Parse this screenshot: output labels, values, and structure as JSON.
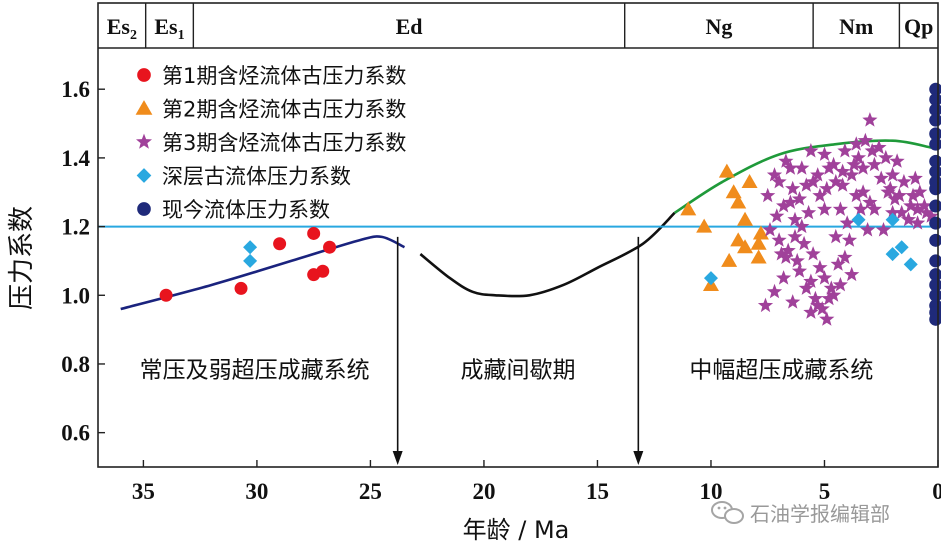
{
  "chart_data": {
    "type": "scatter",
    "xlabel": "年龄 / Ma",
    "ylabel": "压力系数",
    "xlim": [
      37,
      0
    ],
    "ylim": [
      0.5,
      1.72
    ],
    "x_ticks": [
      35,
      30,
      25,
      20,
      15,
      10,
      5,
      0
    ],
    "y_ticks": [
      0.6,
      0.8,
      1.0,
      1.2,
      1.4,
      1.6
    ],
    "grid": false,
    "legend_position": "top-left",
    "strata": [
      {
        "label": "Es",
        "sub": "2",
        "from": 37,
        "to": 34.9
      },
      {
        "label": "Es",
        "sub": "1",
        "from": 34.9,
        "to": 32.8
      },
      {
        "label": "Ed",
        "sub": "",
        "from": 32.8,
        "to": 13.8
      },
      {
        "label": "Ng",
        "sub": "",
        "from": 13.8,
        "to": 5.5
      },
      {
        "label": "Nm",
        "sub": "",
        "from": 5.5,
        "to": 1.7
      },
      {
        "label": "Qp",
        "sub": "",
        "from": 1.7,
        "to": 0
      }
    ],
    "reference_line": {
      "y": 1.2,
      "color": "#29a8e0"
    },
    "phase_labels": [
      {
        "text": "常压及弱超压成藏系统",
        "x": 30.1,
        "y": 0.76
      },
      {
        "text": "成藏间歇期",
        "x": 18.5,
        "y": 0.76
      },
      {
        "text": "中幅超压成藏系统",
        "x": 6.9,
        "y": 0.76
      }
    ],
    "arrows": [
      {
        "x": 23.8,
        "y_from": 1.17,
        "y_to": 0.5
      },
      {
        "x": 13.2,
        "y_from": 1.17,
        "y_to": 0.5
      }
    ],
    "curves": [
      {
        "color": "#1a237e",
        "points": [
          [
            36.0,
            0.96
          ],
          [
            32,
            1.03
          ],
          [
            28,
            1.11
          ],
          [
            25.5,
            1.16
          ],
          [
            24.5,
            1.17
          ],
          [
            23.5,
            1.14
          ]
        ]
      },
      {
        "color": "#111111",
        "points": [
          [
            22.8,
            1.12
          ],
          [
            21.5,
            1.05
          ],
          [
            20.5,
            1.01
          ],
          [
            19.5,
            1.0
          ],
          [
            18.0,
            1.0
          ],
          [
            16.5,
            1.03
          ],
          [
            15.0,
            1.08
          ],
          [
            13.0,
            1.15
          ],
          [
            11.6,
            1.24
          ]
        ]
      },
      {
        "color": "#1f9a3a",
        "points": [
          [
            11.6,
            1.24
          ],
          [
            9.5,
            1.33
          ],
          [
            7,
            1.41
          ],
          [
            4.5,
            1.44
          ],
          [
            2,
            1.45
          ],
          [
            0.3,
            1.43
          ]
        ]
      }
    ],
    "series": [
      {
        "name": "第1期含烃流体古压力系数",
        "marker": "circle",
        "color": "#e8141e",
        "points": [
          [
            34.0,
            1.0
          ],
          [
            30.7,
            1.02
          ],
          [
            29.0,
            1.15
          ],
          [
            27.5,
            1.06
          ],
          [
            27.5,
            1.18
          ],
          [
            27.1,
            1.07
          ],
          [
            26.8,
            1.14
          ]
        ]
      },
      {
        "name": "第2期含烃流体古压力系数",
        "marker": "triangle",
        "color": "#f08c1c",
        "points": [
          [
            11.0,
            1.25
          ],
          [
            10.3,
            1.2
          ],
          [
            10.0,
            1.03
          ],
          [
            9.3,
            1.36
          ],
          [
            9.0,
            1.3
          ],
          [
            8.8,
            1.16
          ],
          [
            8.5,
            1.14
          ],
          [
            8.8,
            1.27
          ],
          [
            8.3,
            1.33
          ],
          [
            8.5,
            1.22
          ],
          [
            9.2,
            1.1
          ],
          [
            7.9,
            1.15
          ],
          [
            7.9,
            1.11
          ],
          [
            7.8,
            1.18
          ]
        ]
      },
      {
        "name": "第3期含烃流体古压力系数",
        "marker": "star",
        "color": "#a0419a",
        "points": [
          [
            6.7,
            1.39
          ],
          [
            6.5,
            1.27
          ],
          [
            6.0,
            1.37
          ],
          [
            5.5,
            1.33
          ],
          [
            5.2,
            1.29
          ],
          [
            4.8,
            1.37
          ],
          [
            4.5,
            1.33
          ],
          [
            4.2,
            1.32
          ],
          [
            3.8,
            1.35
          ],
          [
            3.5,
            1.4
          ],
          [
            3.2,
            1.45
          ],
          [
            3.0,
            1.51
          ],
          [
            2.8,
            1.38
          ],
          [
            2.5,
            1.34
          ],
          [
            2.2,
            1.3
          ],
          [
            1.9,
            1.28
          ],
          [
            1.5,
            1.33
          ],
          [
            1.2,
            1.26
          ],
          [
            0.9,
            1.25
          ],
          [
            0.6,
            1.26
          ],
          [
            0.3,
            1.23
          ],
          [
            1.0,
            1.34
          ],
          [
            2.0,
            1.24
          ],
          [
            2.8,
            1.25
          ],
          [
            3.6,
            1.29
          ],
          [
            4.3,
            1.25
          ],
          [
            5.0,
            1.25
          ],
          [
            5.8,
            1.32
          ],
          [
            6.3,
            1.22
          ],
          [
            7.0,
            1.33
          ],
          [
            7.5,
            1.29
          ],
          [
            7.2,
            1.35
          ],
          [
            5.6,
            1.42
          ],
          [
            4.1,
            1.42
          ],
          [
            3.3,
            1.37
          ],
          [
            2.0,
            1.35
          ],
          [
            1.6,
            1.24
          ],
          [
            3.1,
            1.19
          ],
          [
            4.6,
            1.38
          ],
          [
            6.8,
            1.26
          ],
          [
            7.4,
            1.19
          ],
          [
            7.0,
            1.16
          ],
          [
            6.6,
            1.13
          ],
          [
            6.2,
            1.1
          ],
          [
            5.9,
            1.15
          ],
          [
            5.5,
            1.12
          ],
          [
            5.2,
            1.08
          ],
          [
            5.0,
            1.05
          ],
          [
            4.7,
            1.02
          ],
          [
            4.4,
            1.09
          ],
          [
            4.1,
            1.11
          ],
          [
            3.8,
            1.06
          ],
          [
            6.0,
            1.2
          ],
          [
            5.8,
            1.02
          ],
          [
            5.4,
            0.99
          ],
          [
            5.1,
            0.96
          ],
          [
            4.9,
            0.93
          ],
          [
            5.6,
            1.04
          ],
          [
            6.4,
            0.98
          ],
          [
            7.2,
            1.01
          ],
          [
            7.6,
            0.97
          ],
          [
            6.8,
            1.05
          ],
          [
            6.1,
            1.07
          ],
          [
            5.3,
            0.97
          ],
          [
            4.6,
            1.0
          ],
          [
            4.3,
            1.03
          ],
          [
            6.7,
            1.11
          ],
          [
            3.4,
            1.25
          ],
          [
            3.9,
            1.16
          ],
          [
            2.3,
            1.4
          ],
          [
            2.6,
            1.43
          ],
          [
            1.8,
            1.39
          ],
          [
            0.8,
            1.3
          ],
          [
            3.7,
            1.38
          ],
          [
            5.3,
            1.35
          ],
          [
            6.4,
            1.31
          ],
          [
            4.9,
            1.31
          ],
          [
            4.0,
            1.21
          ],
          [
            2.4,
            1.19
          ],
          [
            1.3,
            1.22
          ],
          [
            6.5,
            1.37
          ],
          [
            3.6,
            1.44
          ],
          [
            0.5,
            1.24
          ],
          [
            1.1,
            1.29
          ],
          [
            2.9,
            1.42
          ],
          [
            5.7,
            1.24
          ],
          [
            7.1,
            1.23
          ],
          [
            4.8,
            0.99
          ],
          [
            5.6,
            0.95
          ],
          [
            6.9,
            1.12
          ],
          [
            6.3,
            1.17
          ],
          [
            4.5,
            1.17
          ],
          [
            3.3,
            1.3
          ],
          [
            2.1,
            1.31
          ],
          [
            4.2,
            1.36
          ],
          [
            5.0,
            1.41
          ],
          [
            6.1,
            1.28
          ],
          [
            3.0,
            1.27
          ],
          [
            1.7,
            1.29
          ],
          [
            0.9,
            1.21
          ]
        ]
      },
      {
        "name": "深层古流体压力系数",
        "marker": "diamond",
        "color": "#29a8e0",
        "points": [
          [
            30.3,
            1.14
          ],
          [
            30.3,
            1.1
          ],
          [
            10.0,
            1.05
          ],
          [
            3.5,
            1.22
          ],
          [
            2.0,
            1.22
          ],
          [
            2.0,
            1.12
          ],
          [
            1.6,
            1.14
          ],
          [
            1.2,
            1.09
          ]
        ]
      },
      {
        "name": "现今流体压力系数",
        "marker": "circle",
        "color": "#1f2a7a",
        "points": [
          [
            0.1,
            1.6
          ],
          [
            0.1,
            1.57
          ],
          [
            0.1,
            1.54
          ],
          [
            0.1,
            1.51
          ],
          [
            0.1,
            1.47
          ],
          [
            0.1,
            1.44
          ],
          [
            0.1,
            1.39
          ],
          [
            0.1,
            1.36
          ],
          [
            0.1,
            1.33
          ],
          [
            0.1,
            1.31
          ],
          [
            0.1,
            1.26
          ],
          [
            0.1,
            1.21
          ],
          [
            0.1,
            1.16
          ],
          [
            0.1,
            1.1
          ],
          [
            0.1,
            1.06
          ],
          [
            0.1,
            1.03
          ],
          [
            0.1,
            1.0
          ],
          [
            0.1,
            0.97
          ],
          [
            0.1,
            0.95
          ],
          [
            0.1,
            0.93
          ]
        ]
      }
    ]
  },
  "watermark": {
    "text": "石油学报编辑部",
    "icon": "wechat-icon"
  }
}
